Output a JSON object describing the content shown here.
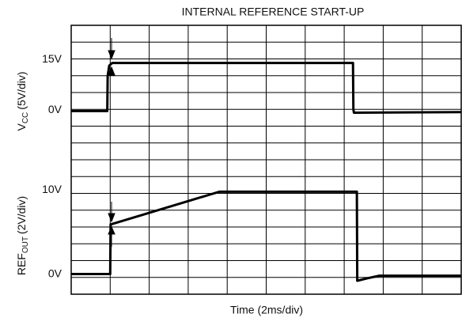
{
  "chart_data": {
    "type": "line",
    "title": "INTERNAL REFERENCE START-UP",
    "xlabel": "Time (2ms/div)",
    "ylabel": {
      "main": "V",
      "sub": "CC",
      "rest": "(5V/div)"
    },
    "y2label": {
      "main": "REF",
      "sub": "OUT",
      "rest": "(2V/div)"
    },
    "xlim": [
      0,
      20
    ],
    "ylim": [
      -55,
      25
    ],
    "y2lim": [
      -2,
      30
    ],
    "yticks": [
      {
        "value": 15,
        "label": "15V"
      },
      {
        "value": 0,
        "label": "0V"
      }
    ],
    "y2ticks": [
      {
        "value": 10,
        "label": "10V"
      },
      {
        "value": 0,
        "label": "0V"
      }
    ],
    "grid": true,
    "series": [
      {
        "name": "VCC",
        "color": "#000000",
        "x": [
          0,
          1.85,
          1.87,
          1.95,
          2.1,
          14.45,
          14.47,
          14.5,
          20
        ],
        "values": [
          -0.5,
          -0.5,
          10,
          13,
          13.8,
          13.8,
          0,
          -1,
          -0.8
        ]
      },
      {
        "name": "REFOUT",
        "color": "#000000",
        "axis": "y2",
        "x": [
          0,
          2.0,
          2.02,
          7.6,
          14.65,
          14.67,
          15.2,
          15.8,
          20
        ],
        "values": [
          0.4,
          0.4,
          6.3,
          10.2,
          10.2,
          -0.4,
          -0.1,
          0.2,
          0.2
        ]
      }
    ]
  }
}
